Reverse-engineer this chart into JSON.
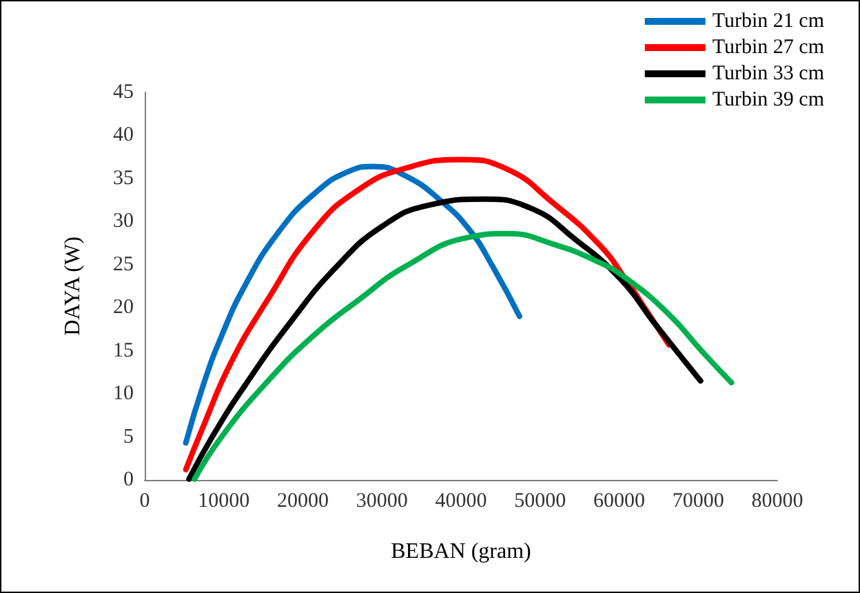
{
  "chart_data": {
    "type": "line",
    "xlabel": "BEBAN (gram)",
    "ylabel": "DAYA (W)",
    "xlim": [
      0,
      80000
    ],
    "xticks": [
      0,
      10000,
      20000,
      30000,
      40000,
      50000,
      60000,
      70000,
      80000
    ],
    "ylim": [
      0,
      45
    ],
    "yticks": [
      0,
      5,
      10,
      15,
      20,
      25,
      30,
      35,
      40,
      45
    ],
    "grid": false,
    "legend": "top right",
    "marker": "none",
    "line_style": "solid",
    "series": [
      {
        "name": "Turbin 21 cm",
        "color": "#0070c0",
        "x": [
          5200,
          7400,
          9800,
          12700,
          16700,
          21400,
          26000,
          28900,
          33000,
          37600,
          41100,
          44000,
          47400
        ],
        "values": [
          4.3,
          11,
          16.9,
          22.6,
          28.5,
          33.2,
          35.9,
          36.4,
          35.3,
          32.3,
          29,
          24.8,
          19
        ]
      },
      {
        "name": "Turbin 27 cm",
        "color": "#ff0000",
        "x": [
          5200,
          7400,
          10900,
          15600,
          21400,
          27200,
          33000,
          40000,
          45800,
          51600,
          57400,
          60900,
          63200,
          66300
        ],
        "values": [
          1.2,
          6.2,
          13.6,
          21,
          29,
          33.8,
          36.2,
          37.2,
          36.1,
          32.2,
          27.4,
          23.2,
          20,
          15.7
        ]
      },
      {
        "name": "Turbin 33 cm",
        "color": "#000000",
        "x": [
          5600,
          8600,
          12700,
          18500,
          24300,
          30100,
          35900,
          42900,
          48700,
          54500,
          60300,
          64300,
          70300
        ],
        "values": [
          0.1,
          5.1,
          11,
          18.4,
          24.8,
          29.5,
          31.9,
          32.6,
          31.6,
          27.9,
          23.2,
          18.4,
          11.5
        ]
      },
      {
        "name": "Turbin 39 cm",
        "color": "#00b050",
        "x": [
          6300,
          9800,
          15600,
          21400,
          27200,
          33000,
          41100,
          45800,
          51600,
          57400,
          60900,
          66100,
          70700,
          74200
        ],
        "values": [
          0.1,
          5.1,
          11.5,
          16.8,
          21,
          24.8,
          28.2,
          28.6,
          27.4,
          25.3,
          23.4,
          19.4,
          14.7,
          11.3
        ]
      }
    ]
  }
}
